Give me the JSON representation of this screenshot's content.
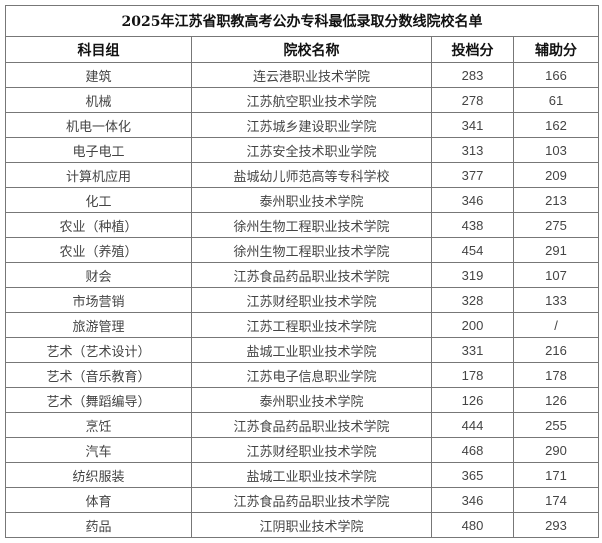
{
  "title": "2025年江苏省职教高考公办专科最低录取分数线院校名单",
  "headers": [
    "科目组",
    "院校名称",
    "投档分",
    "辅助分"
  ],
  "rows": [
    [
      "建筑",
      "连云港职业技术学院",
      "283",
      "166"
    ],
    [
      "机械",
      "江苏航空职业技术学院",
      "278",
      "61"
    ],
    [
      "机电一体化",
      "江苏城乡建设职业学院",
      "341",
      "162"
    ],
    [
      "电子电工",
      "江苏安全技术职业学院",
      "313",
      "103"
    ],
    [
      "计算机应用",
      "盐城幼儿师范高等专科学校",
      "377",
      "209"
    ],
    [
      "化工",
      "泰州职业技术学院",
      "346",
      "213"
    ],
    [
      "农业（种植）",
      "徐州生物工程职业技术学院",
      "438",
      "275"
    ],
    [
      "农业（养殖）",
      "徐州生物工程职业技术学院",
      "454",
      "291"
    ],
    [
      "财会",
      "江苏食品药品职业技术学院",
      "319",
      "107"
    ],
    [
      "市场营销",
      "江苏财经职业技术学院",
      "328",
      "133"
    ],
    [
      "旅游管理",
      "江苏工程职业技术学院",
      "200",
      "/"
    ],
    [
      "艺术（艺术设计）",
      "盐城工业职业技术学院",
      "331",
      "216"
    ],
    [
      "艺术（音乐教育）",
      "江苏电子信息职业学院",
      "178",
      "178"
    ],
    [
      "艺术（舞蹈编导）",
      "泰州职业技术学院",
      "126",
      "126"
    ],
    [
      "烹饪",
      "江苏食品药品职业技术学院",
      "444",
      "255"
    ],
    [
      "汽车",
      "江苏财经职业技术学院",
      "468",
      "290"
    ],
    [
      "纺织服装",
      "盐城工业职业技术学院",
      "365",
      "171"
    ],
    [
      "体育",
      "江苏食品药品职业技术学院",
      "346",
      "174"
    ],
    [
      "药品",
      "江阴职业技术学院",
      "480",
      "293"
    ]
  ]
}
